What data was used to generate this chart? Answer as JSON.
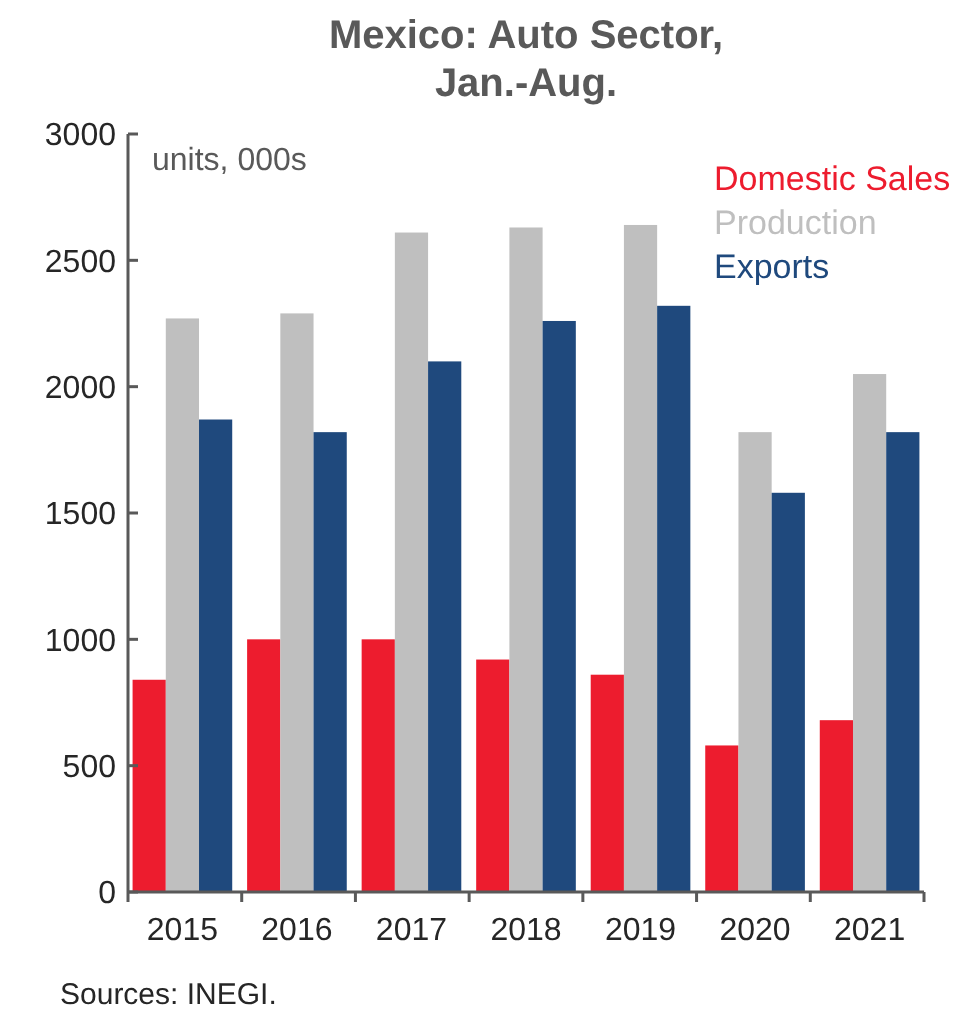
{
  "chart_data": {
    "type": "bar",
    "title": "Mexico: Auto Sector,\nJan.-Aug.",
    "categories": [
      "2015",
      "2016",
      "2017",
      "2018",
      "2019",
      "2020",
      "2021"
    ],
    "series": [
      {
        "name": "Domestic Sales",
        "color": "#ed1c2e",
        "values": [
          840,
          1000,
          1000,
          920,
          860,
          580,
          680
        ]
      },
      {
        "name": "Production",
        "color": "#bfbfbf",
        "values": [
          2270,
          2290,
          2610,
          2630,
          2640,
          1820,
          2050
        ]
      },
      {
        "name": "Exports",
        "color": "#1f497d",
        "values": [
          1870,
          1820,
          2100,
          2260,
          2320,
          1580,
          1820
        ]
      }
    ],
    "ylim": [
      0,
      3000
    ],
    "yticks": [
      0,
      500,
      1000,
      1500,
      2000,
      2500,
      3000
    ],
    "grid": false,
    "legend": "top right",
    "annotations": [
      "units, 000s",
      "Sources: INEGI."
    ]
  }
}
